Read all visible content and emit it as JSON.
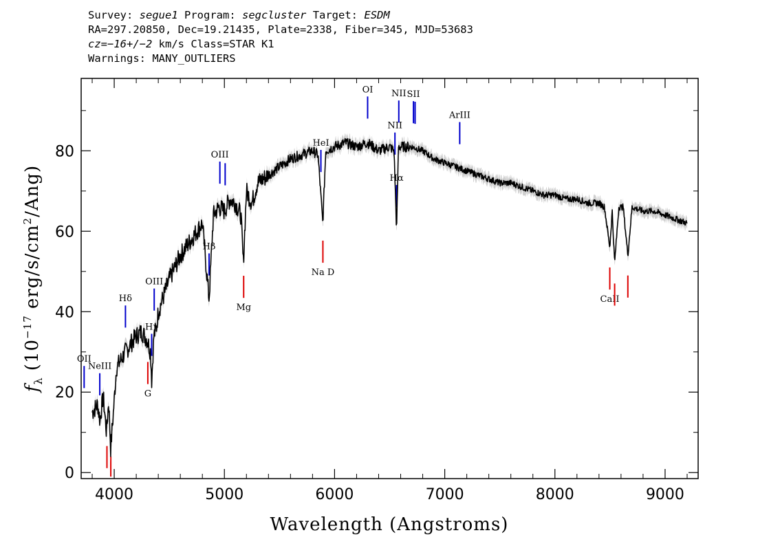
{
  "header": {
    "survey_label": "Survey:",
    "survey": "segue1",
    "program_label": "Program:",
    "program": "segcluster",
    "target_label": "Target:",
    "target": "ESDM",
    "line2": "RA=297.20850, Dec=19.21435, Plate=2338, Fiber=345, MJD=53683",
    "cz": "cz=−16+/−2",
    "line3_rest": " km/s Class=STAR K1",
    "line4": "Warnings: MANY_OUTLIERS"
  },
  "chart_data": {
    "type": "line",
    "xlabel": "Wavelength (Angstroms)",
    "ylabel_parts": {
      "f": "f",
      "sub": "λ",
      "pre": " (10",
      "exp1": "−17",
      "mid": " erg/s/cm",
      "exp2": "2",
      "post": "/Ang)"
    },
    "xlim": [
      3700,
      9300
    ],
    "ylim": [
      -1.5,
      98
    ],
    "x_ticks": [
      4000,
      5000,
      6000,
      7000,
      8000,
      9000
    ],
    "y_ticks": [
      0,
      20,
      40,
      60,
      80
    ],
    "series": [
      {
        "color": "#000000",
        "x": [
          3800,
          3850,
          3870,
          3900,
          3930,
          3950,
          3968,
          3990,
          4020,
          4060,
          4101,
          4150,
          4200,
          4250,
          4300,
          4330,
          4340,
          4360,
          4383,
          4400,
          4450,
          4500,
          4550,
          4600,
          4650,
          4700,
          4750,
          4800,
          4861,
          4900,
          4950,
          5000,
          5050,
          5100,
          5150,
          5172,
          5200,
          5250,
          5300,
          5400,
          5500,
          5600,
          5700,
          5800,
          5850,
          5893,
          5920,
          6000,
          6100,
          6200,
          6300,
          6400,
          6500,
          6540,
          6563,
          6580,
          6620,
          6700,
          6800,
          6900,
          7000,
          7100,
          7200,
          7300,
          7400,
          7500,
          7600,
          7700,
          7800,
          7900,
          8000,
          8100,
          8200,
          8300,
          8400,
          8450,
          8498,
          8520,
          8542,
          8580,
          8620,
          8662,
          8700,
          8800,
          8900,
          9000,
          9100,
          9200
        ],
        "y": [
          15,
          17,
          13,
          19,
          10,
          18,
          6,
          14,
          26,
          28,
          30,
          32,
          34,
          35,
          33,
          30,
          23,
          34,
          36,
          40,
          44,
          48,
          51,
          54,
          56,
          58,
          60,
          62,
          43,
          64,
          66,
          65,
          68,
          67,
          64,
          52,
          70,
          67,
          72,
          74,
          76,
          78,
          79,
          80,
          79,
          62,
          80,
          81,
          82,
          81,
          82,
          80,
          81,
          80,
          60,
          81,
          81,
          81,
          80,
          78,
          77,
          76,
          75,
          74,
          73,
          72,
          72,
          71,
          70,
          69,
          69,
          68,
          68,
          67,
          67,
          66,
          56,
          65,
          52,
          66,
          66,
          54,
          66,
          65,
          65,
          64,
          63,
          62
        ]
      }
    ],
    "error_band_color": "#bbbbbb",
    "emission_lines": [
      {
        "name": "OII",
        "wave": 3727
      },
      {
        "name": "NeIII",
        "wave": 3869
      },
      {
        "name": "Hδ",
        "wave": 4102
      },
      {
        "name": "Hγ",
        "wave": 4340
      },
      {
        "name": "OIII",
        "wave": 4363
      },
      {
        "name": "Hβ",
        "wave": 4861
      },
      {
        "name": "OIII",
        "wave": 4959
      },
      {
        "name": "",
        "wave": 5007
      },
      {
        "name": "HeI",
        "wave": 5876
      },
      {
        "name": "OI",
        "wave": 6300
      },
      {
        "name": "NII",
        "wave": 6548
      },
      {
        "name": "Hα",
        "wave": 6563
      },
      {
        "name": "NII",
        "wave": 6583
      },
      {
        "name": "SII",
        "wave": 6716
      },
      {
        "name": "",
        "wave": 6731
      },
      {
        "name": "ArIII",
        "wave": 7136
      }
    ],
    "absorption_lines": [
      {
        "name": "",
        "wave": 3934
      },
      {
        "name": "",
        "wave": 3969
      },
      {
        "name": "G",
        "wave": 4305
      },
      {
        "name": "Mg",
        "wave": 5175
      },
      {
        "name": "Na D",
        "wave": 5894
      },
      {
        "name": "CaII",
        "wave": 8498
      },
      {
        "name": "",
        "wave": 8542
      },
      {
        "name": "",
        "wave": 8662
      }
    ],
    "emission_color": "#0000cc",
    "absorption_color": "#dd0000"
  }
}
